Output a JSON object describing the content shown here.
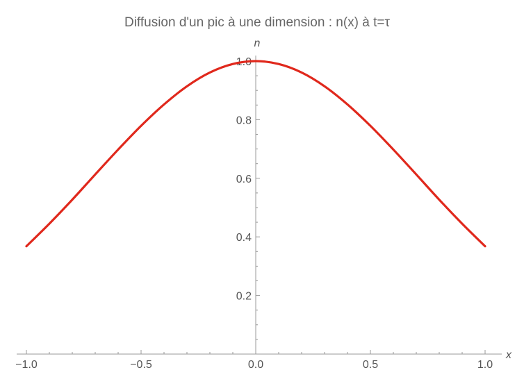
{
  "chart_data": {
    "type": "line",
    "title": "Diffusion d'un pic à une dimension : n(x) à t=τ",
    "xlabel": "x",
    "ylabel": "n",
    "xlim": [
      -1.0,
      1.0
    ],
    "ylim": [
      0,
      1.0
    ],
    "x_ticks": [
      -1.0,
      -0.5,
      0.0,
      0.5,
      1.0
    ],
    "x_tick_labels": [
      "−1.0",
      "−0.5",
      "0.0",
      "0.5",
      "1.0"
    ],
    "y_ticks": [
      0.2,
      0.4,
      0.6,
      0.8,
      1.0
    ],
    "y_tick_labels": [
      "0.2",
      "0.4",
      "0.6",
      "0.8",
      "1.0"
    ],
    "grid": false,
    "series": [
      {
        "color": "#e0281c",
        "x": [
          -1.0,
          -0.9,
          -0.8,
          -0.7,
          -0.6,
          -0.5,
          -0.4,
          -0.3,
          -0.2,
          -0.1,
          0.0,
          0.1,
          0.2,
          0.3,
          0.4,
          0.5,
          0.6,
          0.7,
          0.8,
          0.9,
          1.0
        ],
        "y": [
          0.368,
          0.445,
          0.527,
          0.613,
          0.698,
          0.779,
          0.852,
          0.914,
          0.961,
          0.99,
          1.0,
          0.99,
          0.961,
          0.914,
          0.852,
          0.779,
          0.698,
          0.613,
          0.527,
          0.445,
          0.368
        ]
      }
    ]
  }
}
